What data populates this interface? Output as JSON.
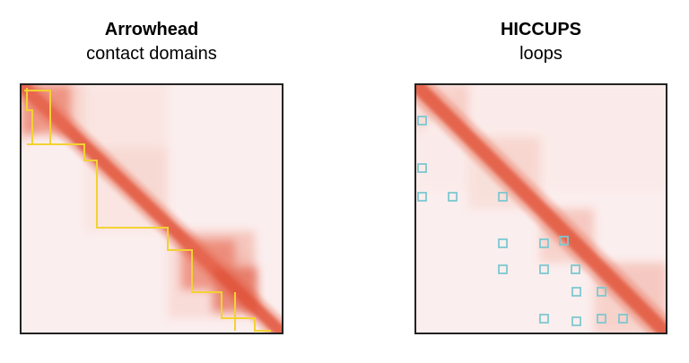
{
  "panels": [
    {
      "id": "arrowhead",
      "title": "Arrowhead",
      "subtitle": "contact domains",
      "annotation_color": "#f2d232",
      "domain_count": 9
    },
    {
      "id": "hiccups",
      "title": "HICCUPS",
      "subtitle": "loops",
      "annotation_color": "#7ec8d0",
      "loop_count": 17
    }
  ],
  "colors": {
    "diagonal": "#e0533a",
    "background": "#fbeeee",
    "frame": "#222222"
  }
}
